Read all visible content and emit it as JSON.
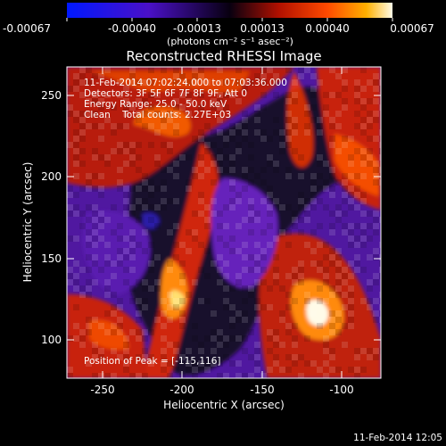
{
  "colorbar": {
    "tick_labels": [
      "-0.00067",
      "-0.00040",
      "-0.00013",
      "0.00013",
      "0.00040",
      "0.00067"
    ],
    "unit_label": "(photons cm⁻² s⁻¹ asec⁻²)"
  },
  "plot": {
    "title": "Reconstructed RHESSI Image",
    "xlabel": "Heliocentric X (arcsec)",
    "ylabel": "Heliocentric Y (arcsec)",
    "x_tick_labels": [
      "-250",
      "-200",
      "-150",
      "-100"
    ],
    "y_tick_labels": [
      "100",
      "150",
      "200",
      "250"
    ],
    "info_lines": [
      "11-Feb-2014 07:02:24.000 to 07:03:36.000",
      "Detectors: 3F 5F 6F 7F 8F 9F, Att 0",
      "Energy Range: 25.0 - 50.0 keV",
      "Clean    Total counts: 2.27E+03"
    ],
    "peak_label": "Position of Peak = [-115,116]"
  },
  "footer": {
    "timestamp": "11-Feb-2014 12:05"
  }
}
